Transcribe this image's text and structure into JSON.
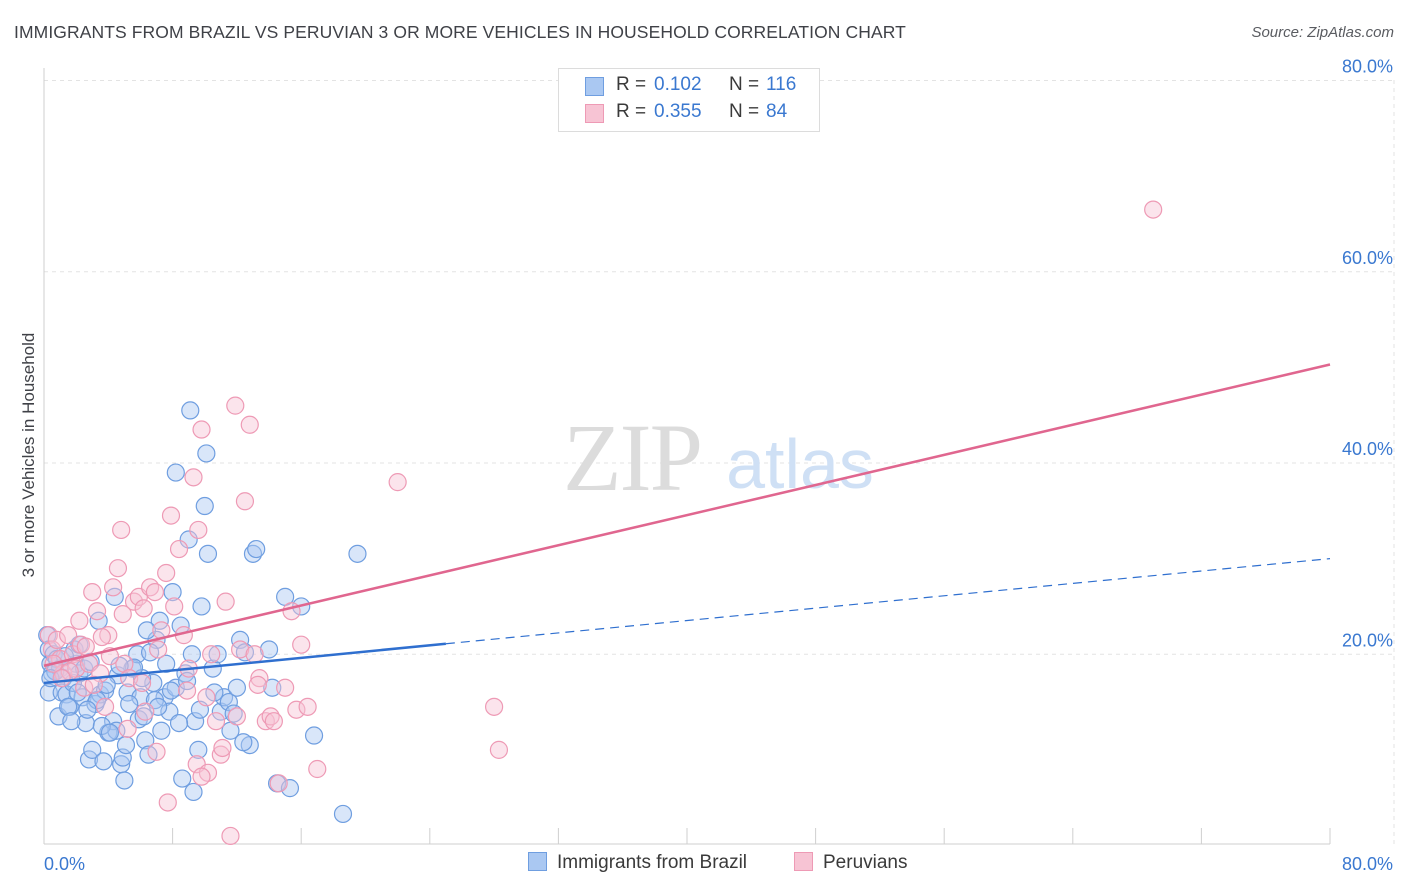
{
  "header": {
    "title": "IMMIGRANTS FROM BRAZIL VS PERUVIAN 3 OR MORE VEHICLES IN HOUSEHOLD CORRELATION CHART",
    "source": "Source: ZipAtlas.com"
  },
  "watermark": {
    "zip": "ZIP",
    "atlas": "atlas"
  },
  "legend": {
    "r_label": "R =",
    "n_label": "N =",
    "rows": [
      {
        "r": "0.102",
        "n": "116"
      },
      {
        "r": "0.355",
        "n": "84"
      }
    ]
  },
  "colors": {
    "brazil_fill": "#aac8f2",
    "brazil_stroke": "#6f9ee0",
    "brazil_line": "#2f6fcf",
    "peru_fill": "#f7c4d4",
    "peru_stroke": "#ee9ab5",
    "peru_line": "#e0668f",
    "axis_label": "#3a78d0"
  },
  "chart_data": {
    "type": "scatter",
    "title": "IMMIGRANTS FROM BRAZIL VS PERUVIAN 3 OR MORE VEHICLES IN HOUSEHOLD CORRELATION CHART",
    "xlabel": "",
    "ylabel": "3 or more Vehicles in Household",
    "xlim": [
      0,
      80
    ],
    "ylim": [
      0,
      80
    ],
    "x_tick_labels": [
      "0.0%",
      "80.0%"
    ],
    "y_ticks": [
      20,
      40,
      60,
      80
    ],
    "y_tick_labels": [
      "20.0%",
      "40.0%",
      "60.0%",
      "80.0%"
    ],
    "grid": true,
    "series": [
      {
        "name": "Immigrants from Brazil",
        "r": 0.102,
        "n": 116,
        "trend": {
          "x0": 0,
          "y0": 17.0,
          "x1": 25,
          "y1": 21.1,
          "dashed_to_x": 80,
          "dashed_to_y": 30.0
        },
        "points": [
          [
            0.2,
            22.0
          ],
          [
            0.3,
            20.5
          ],
          [
            0.4,
            19.0
          ],
          [
            0.5,
            18.0
          ],
          [
            0.3,
            16.0
          ],
          [
            0.6,
            20.0
          ],
          [
            0.8,
            19.5
          ],
          [
            1.0,
            18.5
          ],
          [
            1.2,
            17.5
          ],
          [
            0.9,
            13.5
          ],
          [
            1.1,
            16.0
          ],
          [
            1.4,
            15.8
          ],
          [
            1.6,
            14.5
          ],
          [
            1.8,
            17.0
          ],
          [
            2.0,
            19.0
          ],
          [
            2.2,
            18.0
          ],
          [
            2.4,
            15.5
          ],
          [
            2.6,
            12.8
          ],
          [
            2.8,
            9.0
          ],
          [
            3.0,
            10.0
          ],
          [
            3.2,
            14.8
          ],
          [
            3.5,
            15.8
          ],
          [
            3.8,
            16.2
          ],
          [
            4.0,
            11.8
          ],
          [
            4.3,
            13.0
          ],
          [
            4.5,
            12.0
          ],
          [
            4.8,
            8.5
          ],
          [
            5.0,
            6.8
          ],
          [
            5.2,
            16.0
          ],
          [
            5.5,
            18.5
          ],
          [
            5.8,
            20.0
          ],
          [
            6.0,
            15.5
          ],
          [
            6.3,
            11.0
          ],
          [
            6.5,
            9.5
          ],
          [
            6.8,
            17.0
          ],
          [
            7.0,
            21.5
          ],
          [
            7.2,
            23.5
          ],
          [
            7.5,
            15.5
          ],
          [
            7.8,
            14.0
          ],
          [
            8.0,
            26.5
          ],
          [
            8.2,
            16.5
          ],
          [
            8.5,
            23.0
          ],
          [
            8.8,
            18.0
          ],
          [
            9.0,
            32.0
          ],
          [
            9.2,
            20.0
          ],
          [
            9.4,
            13.0
          ],
          [
            9.6,
            10.0
          ],
          [
            9.8,
            25.0
          ],
          [
            10.0,
            35.5
          ],
          [
            10.2,
            30.5
          ],
          [
            10.5,
            18.5
          ],
          [
            10.8,
            20.0
          ],
          [
            11.0,
            14.0
          ],
          [
            11.2,
            15.5
          ],
          [
            11.5,
            15.0
          ],
          [
            11.8,
            13.8
          ],
          [
            12.0,
            16.5
          ],
          [
            12.2,
            21.5
          ],
          [
            12.5,
            20.2
          ],
          [
            12.8,
            10.5
          ],
          [
            13.0,
            30.5
          ],
          [
            13.2,
            31.0
          ],
          [
            14.0,
            20.5
          ],
          [
            14.2,
            16.5
          ],
          [
            14.5,
            6.5
          ],
          [
            15.0,
            26.0
          ],
          [
            15.3,
            6.0
          ],
          [
            16.0,
            25.0
          ],
          [
            16.8,
            11.5
          ],
          [
            19.5,
            30.5
          ],
          [
            9.1,
            45.5
          ],
          [
            8.2,
            39.0
          ],
          [
            10.1,
            41.0
          ],
          [
            18.6,
            3.3
          ],
          [
            1.5,
            14.5
          ],
          [
            2.1,
            16.0
          ],
          [
            3.6,
            12.5
          ],
          [
            4.1,
            11.8
          ],
          [
            5.3,
            14.8
          ],
          [
            6.1,
            17.5
          ],
          [
            2.5,
            18.5
          ],
          [
            3.3,
            15.2
          ],
          [
            1.9,
            20.5
          ],
          [
            0.7,
            18.2
          ],
          [
            2.9,
            19.2
          ],
          [
            4.6,
            17.8
          ],
          [
            5.9,
            13.2
          ],
          [
            7.3,
            12.0
          ],
          [
            8.6,
            7.0
          ],
          [
            9.3,
            5.6
          ],
          [
            6.6,
            20.2
          ],
          [
            4.9,
            9.2
          ],
          [
            3.7,
            8.8
          ],
          [
            7.9,
            16.2
          ],
          [
            10.6,
            16.0
          ],
          [
            11.6,
            12.0
          ],
          [
            12.4,
            10.8
          ],
          [
            6.9,
            15.2
          ],
          [
            5.6,
            18.6
          ],
          [
            3.4,
            23.5
          ],
          [
            2.2,
            21.0
          ],
          [
            1.3,
            19.8
          ],
          [
            0.4,
            17.5
          ],
          [
            4.4,
            26.0
          ],
          [
            8.9,
            17.2
          ],
          [
            7.6,
            19.0
          ],
          [
            6.2,
            13.5
          ],
          [
            5.1,
            10.5
          ],
          [
            2.7,
            14.2
          ],
          [
            1.7,
            13.0
          ],
          [
            3.9,
            16.8
          ],
          [
            4.7,
            18.8
          ],
          [
            6.4,
            22.5
          ],
          [
            7.1,
            14.5
          ],
          [
            8.4,
            12.8
          ],
          [
            9.7,
            14.2
          ]
        ]
      },
      {
        "name": "Peruvians",
        "r": 0.355,
        "n": 84,
        "trend": {
          "x0": 0,
          "y0": 18.8,
          "x1": 80,
          "y1": 50.3
        },
        "points": [
          [
            0.3,
            22.0
          ],
          [
            0.5,
            20.5
          ],
          [
            0.8,
            21.5
          ],
          [
            1.0,
            19.5
          ],
          [
            1.2,
            18.0
          ],
          [
            1.5,
            22.0
          ],
          [
            1.8,
            20.0
          ],
          [
            2.0,
            18.5
          ],
          [
            2.3,
            21.0
          ],
          [
            2.5,
            16.5
          ],
          [
            2.8,
            19.0
          ],
          [
            3.0,
            26.5
          ],
          [
            3.3,
            24.5
          ],
          [
            3.5,
            18.0
          ],
          [
            3.8,
            14.5
          ],
          [
            4.0,
            22.0
          ],
          [
            4.3,
            27.0
          ],
          [
            4.6,
            29.0
          ],
          [
            4.8,
            33.0
          ],
          [
            5.0,
            19.0
          ],
          [
            5.3,
            17.5
          ],
          [
            5.6,
            25.5
          ],
          [
            5.9,
            26.0
          ],
          [
            6.1,
            17.0
          ],
          [
            6.3,
            14.0
          ],
          [
            6.6,
            27.0
          ],
          [
            6.9,
            26.5
          ],
          [
            7.1,
            20.5
          ],
          [
            7.3,
            22.5
          ],
          [
            7.6,
            28.5
          ],
          [
            7.9,
            34.5
          ],
          [
            8.1,
            25.0
          ],
          [
            8.4,
            31.0
          ],
          [
            8.7,
            22.0
          ],
          [
            9.0,
            18.5
          ],
          [
            9.3,
            38.5
          ],
          [
            9.6,
            33.0
          ],
          [
            9.8,
            43.5
          ],
          [
            10.1,
            15.5
          ],
          [
            10.4,
            20.0
          ],
          [
            10.7,
            13.0
          ],
          [
            11.0,
            9.5
          ],
          [
            11.3,
            25.5
          ],
          [
            11.6,
            1.0
          ],
          [
            11.9,
            46.0
          ],
          [
            12.2,
            20.5
          ],
          [
            12.5,
            36.0
          ],
          [
            12.8,
            44.0
          ],
          [
            13.1,
            20.0
          ],
          [
            13.4,
            17.5
          ],
          [
            13.8,
            13.0
          ],
          [
            14.1,
            13.5
          ],
          [
            14.6,
            6.5
          ],
          [
            15.0,
            16.5
          ],
          [
            15.4,
            24.5
          ],
          [
            16.0,
            21.0
          ],
          [
            17.0,
            8.0
          ],
          [
            22.0,
            38.0
          ],
          [
            28.0,
            14.5
          ],
          [
            28.3,
            10.0
          ],
          [
            69.0,
            66.5
          ],
          [
            1.6,
            18.2
          ],
          [
            2.2,
            23.5
          ],
          [
            3.1,
            16.8
          ],
          [
            4.1,
            19.8
          ],
          [
            5.2,
            12.2
          ],
          [
            6.2,
            24.8
          ],
          [
            7.0,
            9.8
          ],
          [
            7.7,
            4.5
          ],
          [
            8.9,
            16.2
          ],
          [
            9.5,
            8.5
          ],
          [
            10.2,
            7.6
          ],
          [
            11.1,
            10.2
          ],
          [
            12.0,
            13.5
          ],
          [
            13.3,
            16.8
          ],
          [
            14.3,
            13.0
          ],
          [
            15.7,
            14.2
          ],
          [
            16.4,
            14.5
          ],
          [
            0.6,
            19.0
          ],
          [
            1.1,
            17.5
          ],
          [
            2.6,
            20.8
          ],
          [
            3.6,
            21.8
          ],
          [
            4.9,
            24.2
          ],
          [
            9.8,
            7.2
          ]
        ]
      }
    ]
  },
  "bottom_legend": [
    "Immigrants from Brazil",
    "Peruvians"
  ]
}
